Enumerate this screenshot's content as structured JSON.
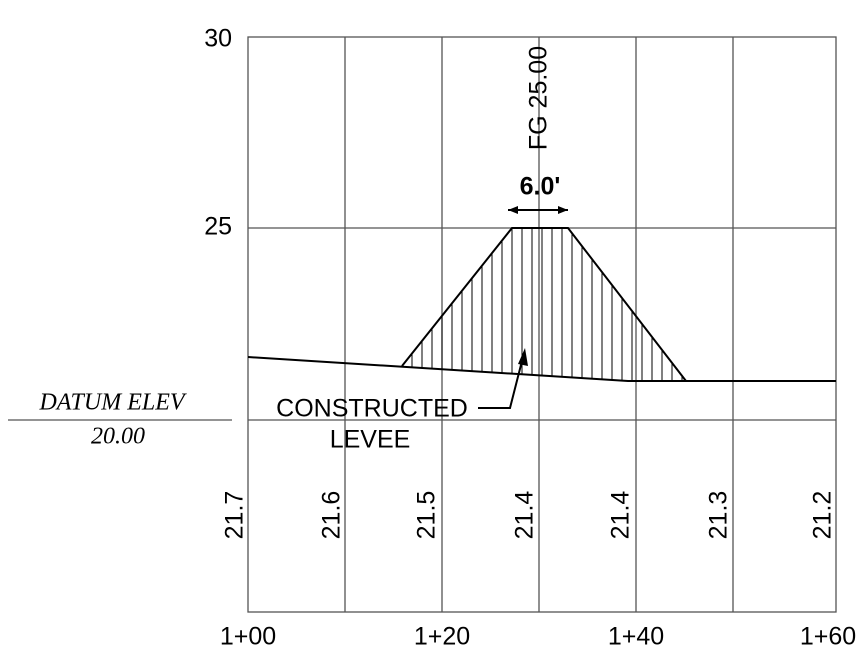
{
  "elevation_labels": [
    "30",
    "25"
  ],
  "datum": {
    "label": "DATUM ELEV",
    "value": "20.00"
  },
  "stations": [
    "1+00",
    "1+20",
    "1+40",
    "1+60"
  ],
  "ground_elevations": [
    "21.7",
    "21.6",
    "21.5",
    "21.4",
    "21.4",
    "21.3",
    "21.2"
  ],
  "annotations": {
    "finished_grade": "FG 25.00",
    "crest_width": "6.0'",
    "levee": [
      "CONSTRUCTED",
      "LEVEE"
    ]
  }
}
